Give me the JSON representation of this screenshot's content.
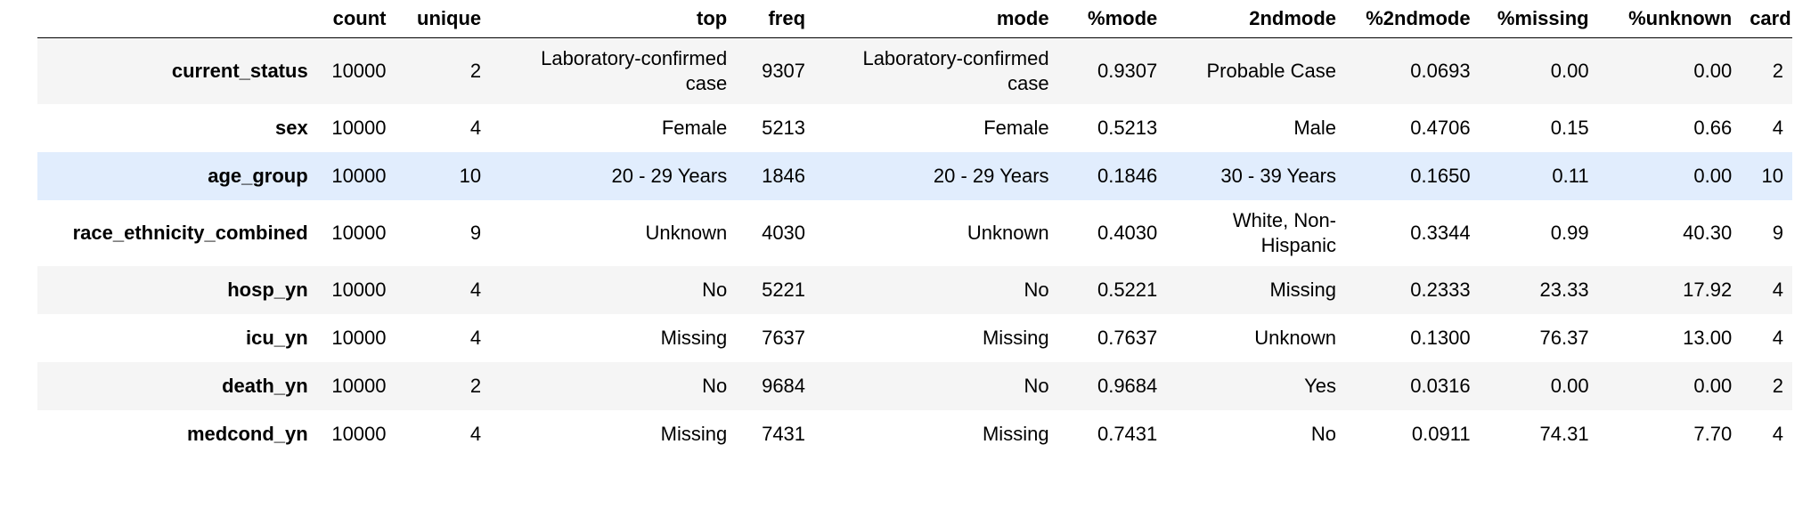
{
  "table": {
    "columns": [
      "",
      "count",
      "unique",
      "top",
      "freq",
      "mode",
      "%mode",
      "2ndmode",
      "%2ndmode",
      "%missing",
      "%unknown",
      "card"
    ],
    "rows": [
      {
        "index": "current_status",
        "count": "10000",
        "unique": "2",
        "top": "Laboratory-confirmed case",
        "freq": "9307",
        "mode": "Laboratory-confirmed case",
        "pmode": "0.9307",
        "mode2": "Probable Case",
        "pmode2": "0.0693",
        "pmissing": "0.00",
        "punknown": "0.00",
        "card": "2"
      },
      {
        "index": "sex",
        "count": "10000",
        "unique": "4",
        "top": "Female",
        "freq": "5213",
        "mode": "Female",
        "pmode": "0.5213",
        "mode2": "Male",
        "pmode2": "0.4706",
        "pmissing": "0.15",
        "punknown": "0.66",
        "card": "4"
      },
      {
        "index": "age_group",
        "count": "10000",
        "unique": "10",
        "top": "20 - 29 Years",
        "freq": "1846",
        "mode": "20 - 29 Years",
        "pmode": "0.1846",
        "mode2": "30 - 39 Years",
        "pmode2": "0.1650",
        "pmissing": "0.11",
        "punknown": "0.00",
        "card": "10"
      },
      {
        "index": "race_ethnicity_combined",
        "count": "10000",
        "unique": "9",
        "top": "Unknown",
        "freq": "4030",
        "mode": "Unknown",
        "pmode": "0.4030",
        "mode2": "White, Non-Hispanic",
        "pmode2": "0.3344",
        "pmissing": "0.99",
        "punknown": "40.30",
        "card": "9"
      },
      {
        "index": "hosp_yn",
        "count": "10000",
        "unique": "4",
        "top": "No",
        "freq": "5221",
        "mode": "No",
        "pmode": "0.5221",
        "mode2": "Missing",
        "pmode2": "0.2333",
        "pmissing": "23.33",
        "punknown": "17.92",
        "card": "4"
      },
      {
        "index": "icu_yn",
        "count": "10000",
        "unique": "4",
        "top": "Missing",
        "freq": "7637",
        "mode": "Missing",
        "pmode": "0.7637",
        "mode2": "Unknown",
        "pmode2": "0.1300",
        "pmissing": "76.37",
        "punknown": "13.00",
        "card": "4"
      },
      {
        "index": "death_yn",
        "count": "10000",
        "unique": "2",
        "top": "No",
        "freq": "9684",
        "mode": "No",
        "pmode": "0.9684",
        "mode2": "Yes",
        "pmode2": "0.0316",
        "pmissing": "0.00",
        "punknown": "0.00",
        "card": "2"
      },
      {
        "index": "medcond_yn",
        "count": "10000",
        "unique": "4",
        "top": "Missing",
        "freq": "7431",
        "mode": "Missing",
        "pmode": "0.7431",
        "mode2": "No",
        "pmode2": "0.0911",
        "pmissing": "74.31",
        "punknown": "7.70",
        "card": "4"
      }
    ]
  },
  "colors": {
    "stripe": "#f5f5f5",
    "hover_row": "#e1edfd",
    "header_border": "#000000"
  }
}
